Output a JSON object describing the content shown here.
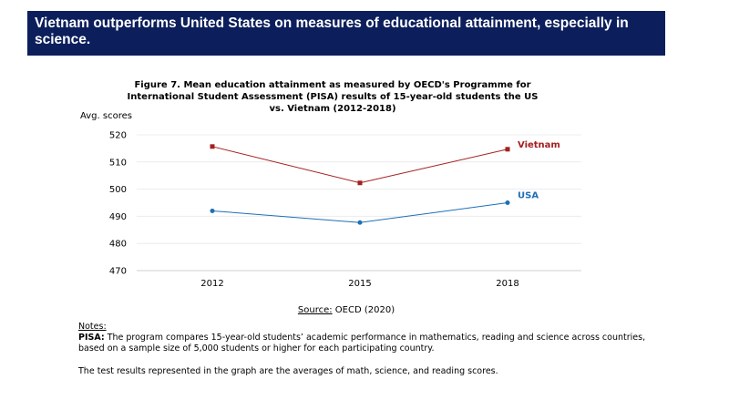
{
  "banner": {
    "title": "Vietnam outperforms United States on measures of educational attainment, especially in science."
  },
  "figure": {
    "title": "Figure 7. Mean education attainment as measured by OECD's Programme for International Student Assessment (PISA) results of 15-year-old students the US vs. Vietnam (2012-2018)",
    "source_label": "Source:",
    "source_text": "OECD (2020)"
  },
  "notes": {
    "heading": "Notes:",
    "pisa_label": "PISA:",
    "pisa_text": "The program compares 15-year-old students’ academic performance in mathematics, reading and science across countries, based on a sample size of 5,000 students or higher for each participating country.",
    "averages_text": "The test results represented in the graph are the averages of math, science, and reading scores."
  },
  "chart_data": {
    "type": "line",
    "title": "Figure 7. Mean education attainment as measured by OECD's Programme for International Student Assessment (PISA) results of 15-year-old students the US vs. Vietnam (2012-2018)",
    "ylabel": "Avg. scores",
    "xlabel": "",
    "categories": [
      "2012",
      "2015",
      "2018"
    ],
    "yticks": [
      470,
      480,
      490,
      500,
      510,
      520
    ],
    "ylim": [
      470,
      520
    ],
    "grid": true,
    "series": [
      {
        "name": "Vietnam",
        "values": [
          515.7,
          502.3,
          514.7
        ],
        "color": "#a32020"
      },
      {
        "name": "USA",
        "values": [
          492.0,
          487.7,
          495.0
        ],
        "color": "#1f6fb5"
      }
    ]
  }
}
